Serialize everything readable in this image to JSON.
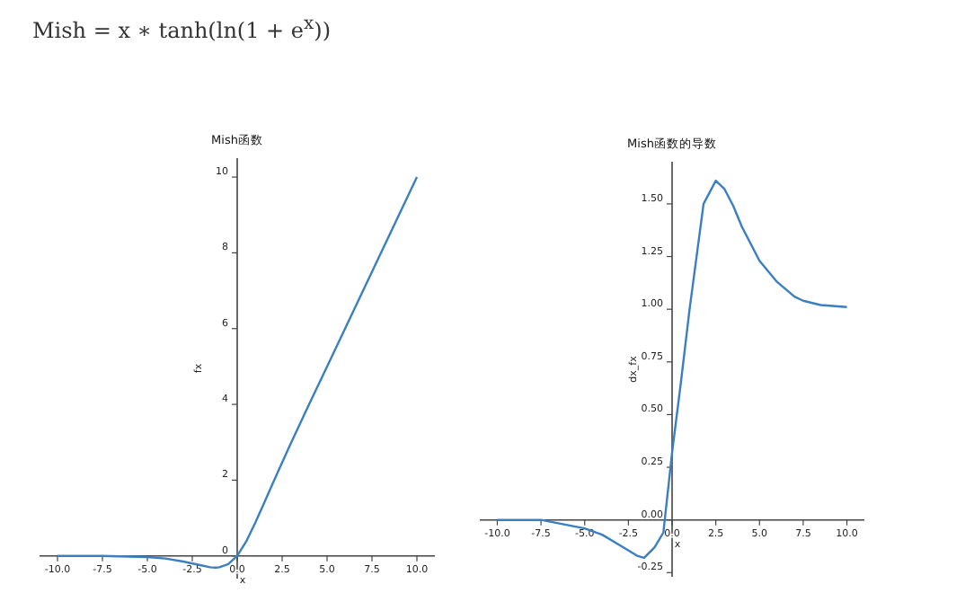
{
  "chart_data": [
    {
      "type": "line",
      "title": "Mish函数",
      "xlabel": "x",
      "ylabel": "fx",
      "annotations": [
        "Mish = x ∗ tanh(ln(1 + e$^{x}$))"
      ],
      "x": [
        -10,
        -7.5,
        -5,
        -4,
        -3,
        -2,
        -1.5,
        -1.2,
        -1,
        -0.5,
        0,
        0.5,
        1,
        1.5,
        2,
        3,
        4,
        5,
        7.5,
        10
      ],
      "series": [
        {
          "color": "#3a7fc1",
          "values": [
            0,
            0,
            -0.03,
            -0.07,
            -0.15,
            -0.25,
            -0.3,
            -0.31,
            -0.3,
            -0.22,
            0,
            0.38,
            0.87,
            1.4,
            1.94,
            2.99,
            4,
            5,
            7.5,
            10
          ]
        }
      ],
      "xlim": [
        -11,
        11
      ],
      "ylim": [
        -0.6,
        10.5
      ],
      "xticks": [
        {
          "value": -10,
          "label": "-10.0"
        },
        {
          "value": -7.5,
          "label": "-7.5"
        },
        {
          "value": -5,
          "label": "-5.0"
        },
        {
          "value": -2.5,
          "label": "-2.5"
        },
        {
          "value": 0,
          "label": "0.0"
        },
        {
          "value": 2.5,
          "label": "2.5"
        },
        {
          "value": 5,
          "label": "5.0"
        },
        {
          "value": 7.5,
          "label": "7.5"
        },
        {
          "value": 10,
          "label": "10.0"
        }
      ],
      "yticks": [
        0,
        2,
        4,
        6,
        8,
        10
      ],
      "grid": false,
      "marker": "none",
      "line_style": "solid"
    },
    {
      "type": "line",
      "title": "Mish函数的导数",
      "xlabel": "x",
      "ylabel": "dx_fx",
      "x": [
        -10,
        -7.5,
        -5,
        -4,
        -3,
        -2,
        -1.6,
        -1,
        -0.5,
        0,
        0.5,
        1,
        1.4,
        1.8,
        2.5,
        3,
        3.5,
        4,
        5,
        6,
        7,
        7.5,
        8.5,
        10
      ],
      "series": [
        {
          "color": "#3a7fc1",
          "values": [
            0,
            0,
            -0.04,
            -0.07,
            -0.12,
            -0.17,
            -0.18,
            -0.13,
            -0.06,
            0.32,
            0.65,
            1,
            1.25,
            1.5,
            1.61,
            1.57,
            1.49,
            1.39,
            1.23,
            1.13,
            1.06,
            1.04,
            1.02,
            1.01
          ]
        }
      ],
      "xlim": [
        -11,
        11
      ],
      "ylim": [
        -0.27,
        1.7
      ],
      "xticks": [
        {
          "value": -10,
          "label": "-10.0"
        },
        {
          "value": -7.5,
          "label": "-7.5"
        },
        {
          "value": -5,
          "label": "-5.0"
        },
        {
          "value": -2.5,
          "label": "-2.5"
        },
        {
          "value": 0,
          "label": "0.0"
        },
        {
          "value": 2.5,
          "label": "2.5"
        },
        {
          "value": 5,
          "label": "5.0"
        },
        {
          "value": 7.5,
          "label": "7.5"
        },
        {
          "value": 10,
          "label": "10.0"
        }
      ],
      "yticks": [
        {
          "value": -0.25,
          "label": "-0.25"
        },
        {
          "value": 0,
          "label": "0.00"
        },
        {
          "value": 0.25,
          "label": "0.25"
        },
        {
          "value": 0.5,
          "label": "0.50"
        },
        {
          "value": 0.75,
          "label": "0.75"
        },
        {
          "value": 1,
          "label": "1.00"
        },
        {
          "value": 1.25,
          "label": "1.25"
        },
        {
          "value": 1.5,
          "label": "1.50"
        }
      ],
      "grid": false,
      "marker": "none",
      "line_style": "solid"
    }
  ]
}
